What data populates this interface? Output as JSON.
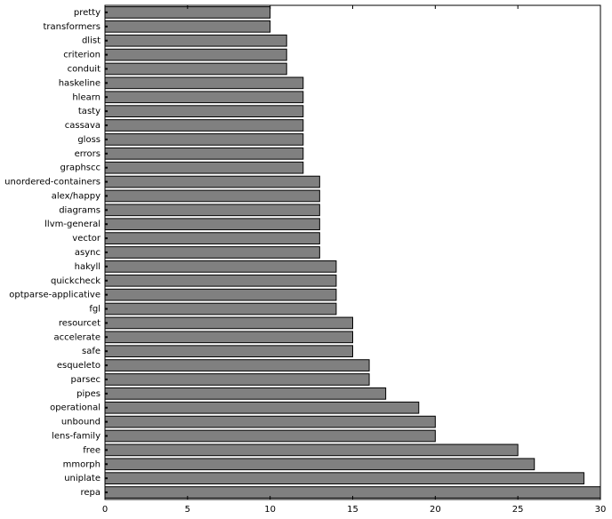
{
  "chart_data": {
    "type": "barh",
    "categories": [
      "pretty",
      "transformers",
      "dlist",
      "criterion",
      "conduit",
      "haskeline",
      "hlearn",
      "tasty",
      "cassava",
      "gloss",
      "errors",
      "graphscc",
      "unordered-containers",
      "alex/happy",
      "diagrams",
      "llvm-general",
      "vector",
      "async",
      "hakyll",
      "quickcheck",
      "optparse-applicative",
      "fgl",
      "resourcet",
      "accelerate",
      "safe",
      "esqueleto",
      "parsec",
      "pipes",
      "operational",
      "unbound",
      "lens-family",
      "free",
      "mmorph",
      "uniplate",
      "repa"
    ],
    "values": [
      10,
      10,
      11,
      11,
      11,
      12,
      12,
      12,
      12,
      12,
      12,
      12,
      13,
      13,
      13,
      13,
      13,
      13,
      14,
      14,
      14,
      14,
      15,
      15,
      15,
      16,
      16,
      17,
      19,
      20,
      20,
      25,
      26,
      29,
      30
    ],
    "color": "#808080",
    "xlim": [
      0,
      30
    ],
    "xticks": [
      0,
      5,
      10,
      15,
      20,
      25,
      30
    ],
    "grid": false
  }
}
